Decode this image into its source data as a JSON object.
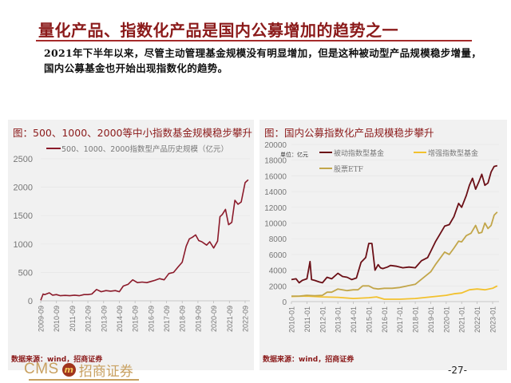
{
  "page": {
    "title": "量化产品、指数化产品是国内公募增加的趋势之一",
    "body": "2021年下半年以来，尽管主动管理基金规模没有明显增加，但是这种被动型产品规模稳步增量，国内公募基金也开始出现指数化的趋势。",
    "page_number": "-27-"
  },
  "footer": {
    "logo_text": "CMS",
    "logo_mark": "m",
    "logo_cn": "招商证券"
  },
  "panels": {
    "left": {
      "title": "图：500、1000、2000等中小指数基金规模稳步攀升",
      "source": "数据来源：wind，招商证券",
      "legend": "500、1000、2000指数型产品历史规模（亿元）"
    },
    "right": {
      "title": "图：国内公募指数化产品规模稳步攀升",
      "source": "数据来源：wind，招商证券",
      "unit_label": "单位：亿元",
      "legend": [
        "被动指数型基金",
        "增强指数型基金",
        "股票ETF"
      ]
    }
  },
  "colors": {
    "title_red": "#8b1a1a",
    "series_dark_red": "#6b0f16",
    "series_yellow": "#f2c12e",
    "series_olive": "#c2a64a",
    "panel_bg": "#f1f1f1",
    "logo_gold": "#c8a060"
  },
  "chart_data": [
    {
      "type": "line",
      "title": "图：500、1000、2000等中小指数基金规模稳步攀升",
      "xlabel": "",
      "ylabel": "",
      "ylim": [
        0,
        2500
      ],
      "yticks": [
        0,
        500,
        1000,
        1500,
        2000,
        2500
      ],
      "xticks": [
        "2009-09",
        "2010-09",
        "2011-09",
        "2012-09",
        "2013-09",
        "2014-09",
        "2015-09",
        "2016-09",
        "2017-09",
        "2018-09",
        "2019-09",
        "2020-09",
        "2021-09",
        "2022-09"
      ],
      "grid": true,
      "legend_position": "top",
      "series": [
        {
          "name": "500、1000、2000指数型产品历史规模（亿元）",
          "color": "#8b1a2a",
          "x": [
            2009.75,
            2009.9,
            2010.0,
            2010.3,
            2010.5,
            2010.75,
            2011.0,
            2011.3,
            2011.6,
            2011.9,
            2012.2,
            2012.5,
            2012.75,
            2013.0,
            2013.3,
            2013.6,
            2013.9,
            2014.2,
            2014.5,
            2014.75,
            2015.0,
            2015.3,
            2015.6,
            2015.9,
            2016.2,
            2016.5,
            2016.75,
            2017.0,
            2017.3,
            2017.6,
            2017.9,
            2018.2,
            2018.5,
            2018.75,
            2019.0,
            2019.2,
            2019.4,
            2019.6,
            2019.8,
            2020.0,
            2020.3,
            2020.5,
            2020.75,
            2021.0,
            2021.15,
            2021.3,
            2021.5,
            2021.7,
            2021.9,
            2022.1,
            2022.3,
            2022.5,
            2022.75,
            2022.95
          ],
          "values": [
            10,
            120,
            110,
            140,
            100,
            110,
            90,
            95,
            90,
            100,
            90,
            110,
            110,
            120,
            200,
            160,
            180,
            170,
            180,
            160,
            260,
            290,
            370,
            320,
            330,
            320,
            340,
            360,
            390,
            370,
            480,
            500,
            600,
            680,
            960,
            1090,
            1120,
            1160,
            1060,
            1040,
            980,
            1040,
            930,
            1050,
            1480,
            1520,
            1610,
            1340,
            1380,
            1770,
            1700,
            1740,
            2080,
            2130
          ]
        }
      ]
    },
    {
      "type": "line",
      "title": "图：国内公募指数化产品规模稳步攀升",
      "xlabel": "",
      "ylabel": "单位：亿元",
      "ylim": [
        0,
        20000
      ],
      "yticks": [
        0,
        2000,
        4000,
        6000,
        8000,
        10000,
        12000,
        14000,
        16000,
        18000,
        20000
      ],
      "xticks": [
        "2010-01",
        "2011-01",
        "2012-01",
        "2013-01",
        "2014-01",
        "2015-01",
        "2016-01",
        "2017-01",
        "2018-01",
        "2019-01",
        "2020-01",
        "2021-01",
        "2022-01",
        "2023-01"
      ],
      "grid": true,
      "legend_position": "top",
      "series": [
        {
          "name": "被动指数型基金",
          "color": "#6b0f16",
          "x": [
            2010.0,
            2010.3,
            2010.5,
            2010.7,
            2011.0,
            2011.2,
            2011.3,
            2011.5,
            2011.8,
            2012.0,
            2012.3,
            2012.6,
            2013.0,
            2013.3,
            2013.6,
            2013.9,
            2014.2,
            2014.5,
            2014.8,
            2015.0,
            2015.2,
            2015.4,
            2015.6,
            2015.75,
            2015.9,
            2016.2,
            2016.4,
            2016.8,
            2017.2,
            2017.6,
            2018.0,
            2018.4,
            2018.8,
            2019.0,
            2019.3,
            2019.6,
            2019.9,
            2020.2,
            2020.5,
            2020.8,
            2021.0,
            2021.3,
            2021.5,
            2021.7,
            2021.9,
            2022.1,
            2022.3,
            2022.5,
            2022.7,
            2022.9,
            2023.1,
            2023.3
          ],
          "values": [
            2800,
            2900,
            2400,
            2700,
            2900,
            5100,
            2800,
            2700,
            2500,
            2400,
            3100,
            2900,
            3600,
            3200,
            3100,
            2800,
            3000,
            5000,
            5600,
            7400,
            7400,
            4000,
            4700,
            4300,
            4200,
            4400,
            4600,
            4500,
            4300,
            4400,
            4300,
            5200,
            5600,
            6400,
            7600,
            8600,
            9600,
            9800,
            10800,
            12500,
            12000,
            13500,
            14800,
            15700,
            14300,
            15200,
            16200,
            14800,
            15100,
            16500,
            17200,
            17300
          ]
        },
        {
          "name": "增强指数型基金",
          "color": "#f2c12e",
          "x": [
            2010.0,
            2011.0,
            2012.0,
            2013.0,
            2014.0,
            2015.0,
            2015.5,
            2016.0,
            2017.0,
            2018.0,
            2019.0,
            2020.0,
            2020.5,
            2021.0,
            2021.5,
            2022.0,
            2022.5,
            2023.0,
            2023.3
          ],
          "values": [
            650,
            700,
            600,
            550,
            400,
            500,
            600,
            300,
            300,
            400,
            600,
            800,
            1000,
            1100,
            1500,
            1600,
            1500,
            1700,
            2000
          ]
        },
        {
          "name": "股票ETF",
          "color": "#c2a64a",
          "x": [
            2010.0,
            2010.5,
            2011.0,
            2011.5,
            2012.0,
            2012.3,
            2012.6,
            2013.0,
            2013.3,
            2013.6,
            2014.0,
            2014.3,
            2014.6,
            2015.0,
            2015.3,
            2015.6,
            2016.0,
            2016.5,
            2017.0,
            2017.5,
            2018.0,
            2018.5,
            2019.0,
            2019.3,
            2019.6,
            2019.9,
            2020.2,
            2020.5,
            2020.8,
            2021.0,
            2021.3,
            2021.6,
            2021.9,
            2022.1,
            2022.3,
            2022.5,
            2022.7,
            2022.9,
            2023.1,
            2023.3
          ],
          "values": [
            700,
            700,
            800,
            750,
            800,
            1200,
            1200,
            1600,
            1500,
            1400,
            1500,
            1500,
            2000,
            2000,
            1700,
            1600,
            1700,
            1700,
            1800,
            2000,
            2200,
            3000,
            3800,
            4700,
            5500,
            6300,
            6000,
            6800,
            7700,
            7600,
            8400,
            8700,
            9700,
            8700,
            8800,
            10000,
            9300,
            9700,
            11000,
            11400
          ]
        }
      ]
    }
  ]
}
